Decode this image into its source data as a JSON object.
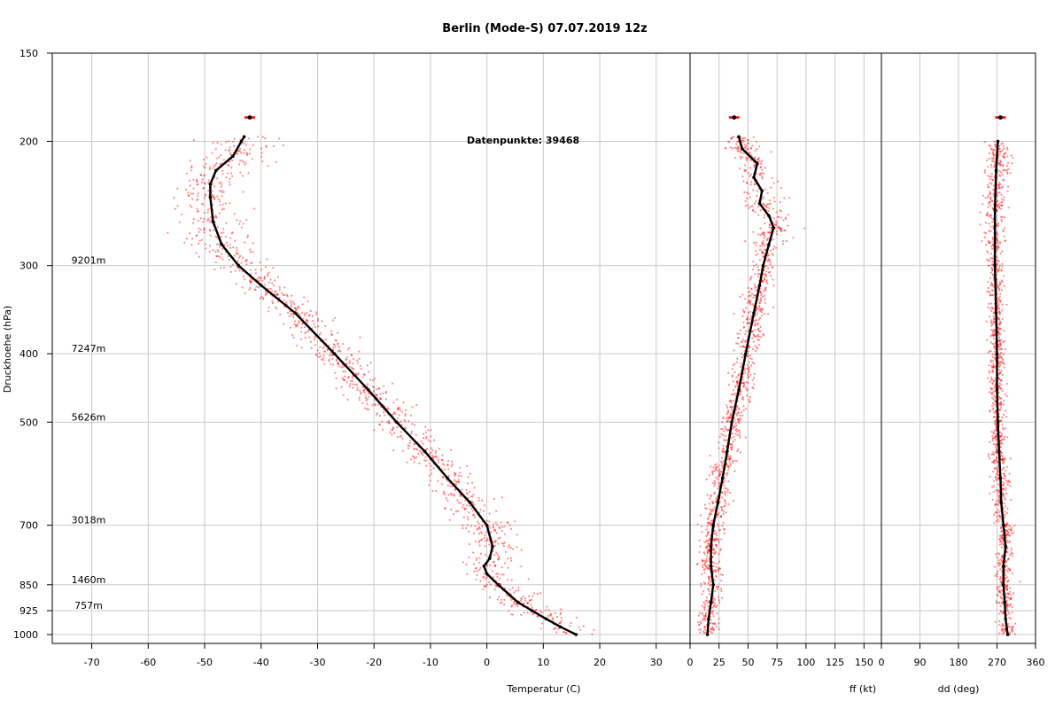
{
  "chart_data": {
    "type": "scatter",
    "title": "Berlin (Mode-S) 07.07.2019 12z",
    "annotation": "Datenpunkte: 39468",
    "ylabel": "Druckhoehe (hPa)",
    "y_scale": "log",
    "ylim": [
      1000,
      150
    ],
    "y_ticks": [
      150,
      200,
      300,
      400,
      500,
      700,
      850,
      925,
      1000
    ],
    "height_labels": [
      {
        "p": 300,
        "label": "9201m"
      },
      {
        "p": 400,
        "label": "7247m"
      },
      {
        "p": 500,
        "label": "5626m"
      },
      {
        "p": 700,
        "label": "3018m"
      },
      {
        "p": 850,
        "label": "1460m"
      },
      {
        "p": 925,
        "label": "757m"
      }
    ],
    "grid": true,
    "colors": {
      "points": "#ff0000",
      "mean": "#000000",
      "grid": "#c8c8c8"
    },
    "panels": [
      {
        "id": "temp",
        "xlabel": "Temperatur (C)",
        "xlim": [
          -77,
          36
        ],
        "x_ticks": [
          -70,
          -60,
          -50,
          -40,
          -30,
          -20,
          -10,
          0,
          10,
          20,
          30
        ],
        "mean_profile": [
          {
            "p": 1000,
            "x": 15.8
          },
          {
            "p": 975,
            "x": 13
          },
          {
            "p": 950,
            "x": 10.5
          },
          {
            "p": 925,
            "x": 8
          },
          {
            "p": 900,
            "x": 5.5
          },
          {
            "p": 850,
            "x": 2
          },
          {
            "p": 820,
            "x": 0
          },
          {
            "p": 800,
            "x": -0.5
          },
          {
            "p": 780,
            "x": 0.5
          },
          {
            "p": 750,
            "x": 1
          },
          {
            "p": 700,
            "x": 0
          },
          {
            "p": 650,
            "x": -3
          },
          {
            "p": 600,
            "x": -7
          },
          {
            "p": 550,
            "x": -11
          },
          {
            "p": 500,
            "x": -16
          },
          {
            "p": 450,
            "x": -21
          },
          {
            "p": 400,
            "x": -27
          },
          {
            "p": 350,
            "x": -34
          },
          {
            "p": 320,
            "x": -40
          },
          {
            "p": 300,
            "x": -44
          },
          {
            "p": 280,
            "x": -47
          },
          {
            "p": 260,
            "x": -48.5
          },
          {
            "p": 240,
            "x": -49
          },
          {
            "p": 230,
            "x": -49
          },
          {
            "p": 220,
            "x": -48
          },
          {
            "p": 210,
            "x": -45
          },
          {
            "p": 200,
            "x": -43.5
          },
          {
            "p": 197,
            "x": -43
          }
        ],
        "isolated": [
          {
            "p": 185,
            "x": -42
          }
        ]
      },
      {
        "id": "ff",
        "xlabel": "ff (kt)",
        "xlim": [
          0,
          165
        ],
        "x_ticks": [
          0,
          25,
          50,
          75,
          100,
          125,
          150
        ],
        "mean_profile": [
          {
            "p": 1000,
            "x": 15
          },
          {
            "p": 950,
            "x": 16
          },
          {
            "p": 900,
            "x": 18
          },
          {
            "p": 850,
            "x": 20
          },
          {
            "p": 800,
            "x": 18
          },
          {
            "p": 750,
            "x": 18
          },
          {
            "p": 700,
            "x": 20
          },
          {
            "p": 650,
            "x": 24
          },
          {
            "p": 600,
            "x": 28
          },
          {
            "p": 550,
            "x": 32
          },
          {
            "p": 500,
            "x": 36
          },
          {
            "p": 450,
            "x": 42
          },
          {
            "p": 400,
            "x": 48
          },
          {
            "p": 350,
            "x": 55
          },
          {
            "p": 320,
            "x": 60
          },
          {
            "p": 300,
            "x": 63
          },
          {
            "p": 280,
            "x": 68
          },
          {
            "p": 265,
            "x": 72
          },
          {
            "p": 255,
            "x": 68
          },
          {
            "p": 245,
            "x": 60
          },
          {
            "p": 235,
            "x": 62
          },
          {
            "p": 225,
            "x": 55
          },
          {
            "p": 215,
            "x": 58
          },
          {
            "p": 205,
            "x": 45
          },
          {
            "p": 197,
            "x": 42
          }
        ],
        "isolated": [
          {
            "p": 185,
            "x": 38
          }
        ]
      },
      {
        "id": "dd",
        "xlabel": "dd (deg)",
        "xlim": [
          0,
          360
        ],
        "x_ticks": [
          0,
          90,
          180,
          270,
          360
        ],
        "mean_profile": [
          {
            "p": 1000,
            "x": 295
          },
          {
            "p": 950,
            "x": 290
          },
          {
            "p": 900,
            "x": 288
          },
          {
            "p": 850,
            "x": 285
          },
          {
            "p": 800,
            "x": 285
          },
          {
            "p": 750,
            "x": 290
          },
          {
            "p": 700,
            "x": 285
          },
          {
            "p": 650,
            "x": 280
          },
          {
            "p": 600,
            "x": 278
          },
          {
            "p": 550,
            "x": 275
          },
          {
            "p": 500,
            "x": 272
          },
          {
            "p": 450,
            "x": 270
          },
          {
            "p": 400,
            "x": 270
          },
          {
            "p": 350,
            "x": 268
          },
          {
            "p": 300,
            "x": 265
          },
          {
            "p": 250,
            "x": 265
          },
          {
            "p": 220,
            "x": 268
          },
          {
            "p": 200,
            "x": 272
          }
        ],
        "isolated": [
          {
            "p": 185,
            "x": 278
          }
        ]
      }
    ]
  }
}
